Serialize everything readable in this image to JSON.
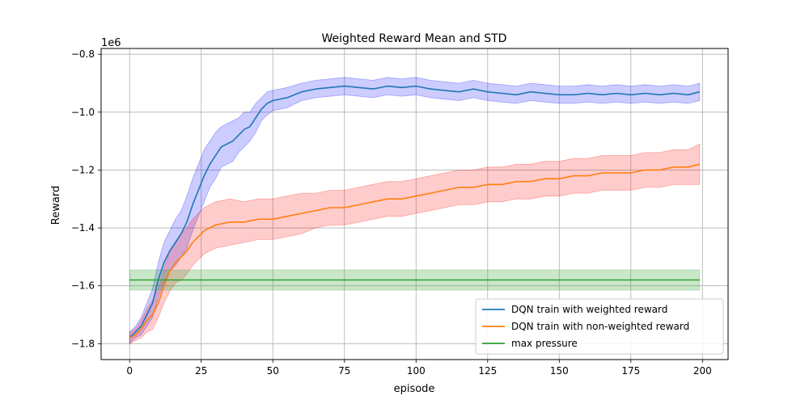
{
  "chart_data": {
    "type": "line",
    "title": "Weighted Reward Mean and STD",
    "xlabel": "episode",
    "ylabel": "Reward",
    "y_multiplier_label": "1e6",
    "xlim": [
      -9.95,
      208.95
    ],
    "ylim": [
      -1.855,
      -0.78
    ],
    "x_ticks": [
      0,
      25,
      50,
      75,
      100,
      125,
      150,
      175,
      200
    ],
    "x_tick_labels": [
      "0",
      "25",
      "50",
      "75",
      "100",
      "125",
      "150",
      "175",
      "200"
    ],
    "y_ticks": [
      -1.8,
      -1.6,
      -1.4,
      -1.2,
      -1.0,
      -0.8
    ],
    "y_tick_labels": [
      "−1.8",
      "−1.6",
      "−1.4",
      "−1.2",
      "−1.0",
      "−0.8"
    ],
    "grid": true,
    "legend_position": "lower-right",
    "series": [
      {
        "name": "DQN train with weighted reward",
        "color": "#1f77b4",
        "band_color": "#0000ff",
        "band_opacity": 0.2,
        "x": [
          0,
          2,
          4,
          6,
          8,
          10,
          12,
          14,
          16,
          18,
          20,
          22,
          24,
          26,
          28,
          30,
          32,
          34,
          36,
          38,
          40,
          42,
          44,
          46,
          48,
          50,
          55,
          60,
          65,
          70,
          75,
          80,
          85,
          90,
          95,
          100,
          105,
          110,
          115,
          120,
          125,
          130,
          135,
          140,
          145,
          150,
          155,
          160,
          165,
          170,
          175,
          180,
          185,
          190,
          195,
          199
        ],
        "mean": [
          -1.78,
          -1.76,
          -1.74,
          -1.7,
          -1.66,
          -1.58,
          -1.52,
          -1.48,
          -1.45,
          -1.42,
          -1.38,
          -1.32,
          -1.27,
          -1.22,
          -1.18,
          -1.15,
          -1.12,
          -1.11,
          -1.1,
          -1.08,
          -1.06,
          -1.05,
          -1.02,
          -0.99,
          -0.97,
          -0.96,
          -0.95,
          -0.93,
          -0.92,
          -0.915,
          -0.91,
          -0.915,
          -0.92,
          -0.91,
          -0.915,
          -0.91,
          -0.92,
          -0.925,
          -0.93,
          -0.92,
          -0.93,
          -0.935,
          -0.94,
          -0.93,
          -0.935,
          -0.94,
          -0.94,
          -0.935,
          -0.94,
          -0.935,
          -0.94,
          -0.935,
          -0.94,
          -0.935,
          -0.94,
          -0.93
        ],
        "std": [
          0.02,
          0.02,
          0.03,
          0.04,
          0.05,
          0.06,
          0.07,
          0.07,
          0.08,
          0.08,
          0.09,
          0.09,
          0.09,
          0.09,
          0.08,
          0.08,
          0.07,
          0.07,
          0.07,
          0.06,
          0.06,
          0.05,
          0.05,
          0.04,
          0.04,
          0.035,
          0.035,
          0.03,
          0.03,
          0.03,
          0.03,
          0.03,
          0.03,
          0.03,
          0.03,
          0.03,
          0.03,
          0.03,
          0.03,
          0.03,
          0.03,
          0.03,
          0.03,
          0.03,
          0.03,
          0.03,
          0.03,
          0.03,
          0.03,
          0.03,
          0.03,
          0.03,
          0.03,
          0.03,
          0.03,
          0.03
        ]
      },
      {
        "name": "DQN train with non-weighted reward",
        "color": "#ff7f0e",
        "band_color": "#ff0000",
        "band_opacity": 0.2,
        "x": [
          0,
          2,
          4,
          6,
          8,
          10,
          12,
          14,
          16,
          18,
          20,
          22,
          24,
          26,
          28,
          30,
          35,
          40,
          45,
          50,
          55,
          60,
          65,
          70,
          75,
          80,
          85,
          90,
          95,
          100,
          105,
          110,
          115,
          120,
          125,
          130,
          135,
          140,
          145,
          150,
          155,
          160,
          165,
          170,
          175,
          180,
          185,
          190,
          195,
          199
        ],
        "mean": [
          -1.78,
          -1.77,
          -1.75,
          -1.72,
          -1.7,
          -1.66,
          -1.6,
          -1.55,
          -1.52,
          -1.5,
          -1.48,
          -1.45,
          -1.43,
          -1.41,
          -1.4,
          -1.39,
          -1.38,
          -1.38,
          -1.37,
          -1.37,
          -1.36,
          -1.35,
          -1.34,
          -1.33,
          -1.33,
          -1.32,
          -1.31,
          -1.3,
          -1.3,
          -1.29,
          -1.28,
          -1.27,
          -1.26,
          -1.26,
          -1.25,
          -1.25,
          -1.24,
          -1.24,
          -1.23,
          -1.23,
          -1.22,
          -1.22,
          -1.21,
          -1.21,
          -1.21,
          -1.2,
          -1.2,
          -1.19,
          -1.19,
          -1.18
        ],
        "std": [
          0.02,
          0.02,
          0.03,
          0.04,
          0.05,
          0.05,
          0.06,
          0.07,
          0.07,
          0.08,
          0.08,
          0.08,
          0.08,
          0.08,
          0.08,
          0.08,
          0.08,
          0.07,
          0.07,
          0.07,
          0.07,
          0.07,
          0.06,
          0.06,
          0.06,
          0.06,
          0.06,
          0.06,
          0.06,
          0.06,
          0.06,
          0.06,
          0.06,
          0.06,
          0.06,
          0.06,
          0.06,
          0.06,
          0.06,
          0.06,
          0.06,
          0.06,
          0.06,
          0.06,
          0.06,
          0.06,
          0.06,
          0.06,
          0.06,
          0.07
        ]
      },
      {
        "name": "max pressure",
        "color": "#2ca02c",
        "band_color": "#2ca02c",
        "band_opacity": 0.25,
        "x": [
          0,
          199
        ],
        "mean": [
          -1.58,
          -1.58
        ],
        "std": [
          0.035,
          0.035
        ]
      }
    ]
  }
}
